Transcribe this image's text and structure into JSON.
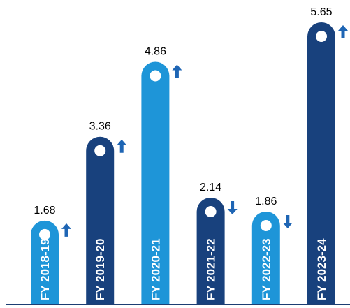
{
  "chart_data": {
    "type": "bar",
    "categories": [
      "FY 2018-19",
      "FY 2019-20",
      "FY 2020-21",
      "FY 2021-22",
      "FY 2022-23",
      "FY 2023-24"
    ],
    "values": [
      1.68,
      3.36,
      4.86,
      2.14,
      1.86,
      5.65
    ],
    "value_labels": [
      "1.68",
      "3.36",
      "4.86",
      "2.14",
      "1.86",
      "5.65"
    ],
    "trend": [
      "up",
      "up",
      "up",
      "down",
      "down",
      "up"
    ],
    "bar_colors": [
      "#1e95d8",
      "#18417d",
      "#1e95d8",
      "#18417d",
      "#1e95d8",
      "#18417d"
    ],
    "arrow_color": "#1e65b4",
    "axis_color": "#1d3e73",
    "title": "",
    "xlabel": "",
    "ylabel": "",
    "ylim": [
      0,
      5.65
    ],
    "grid": false,
    "legend": "none"
  }
}
